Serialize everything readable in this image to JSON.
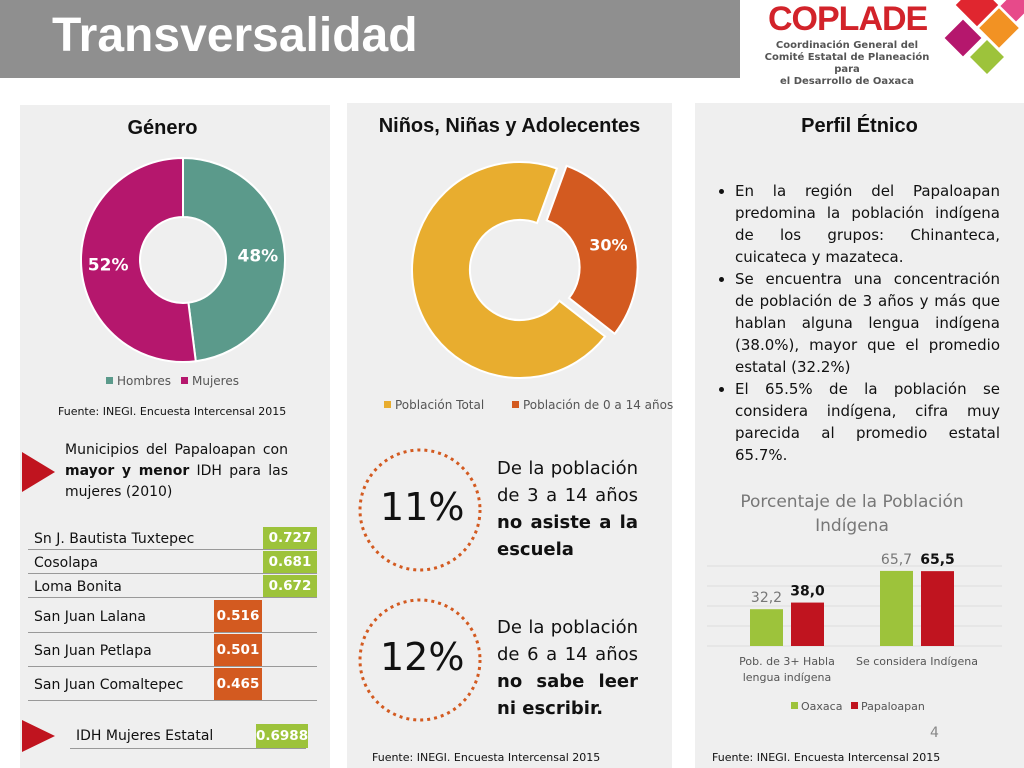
{
  "header": {
    "title": "Transversalidad",
    "logo": "COPLADE",
    "logo_subtitle": [
      "Coordinación General del",
      "Comité Estatal de Planeación para",
      "el Desarrollo de Oaxaca"
    ]
  },
  "chart_data": [
    {
      "type": "donut",
      "title": "Género",
      "categories": [
        "Hombres",
        "Mujeres"
      ],
      "values": [
        48,
        52
      ],
      "value_labels": [
        "48%",
        "52%"
      ],
      "colors": [
        "#5b9a8b",
        "#b5176d"
      ],
      "legend": "bottom",
      "source": "Fuente: INEGI. Encuesta Intercensal 2015"
    },
    {
      "type": "donut",
      "title": "Niños, Niñas y Adolecentes",
      "categories": [
        "Población Total",
        "Población de 0 a 14 años"
      ],
      "values": [
        70,
        30
      ],
      "value_labels": [
        null,
        "30%"
      ],
      "colors": [
        "#e8ad2f",
        "#d35a20"
      ],
      "legend": "bottom",
      "exploded": [
        false,
        true
      ],
      "source": "Fuente: INEGI. Encuesta Intercensal 2015"
    },
    {
      "type": "bar",
      "title": "Porcentaje de la Población Indígena",
      "categories": [
        "Pob. de 3+ Habla lengua indígena",
        "Se considera Indígena"
      ],
      "series": [
        {
          "name": "Oaxaca",
          "color": "#9dc33b",
          "values": [
            32.2,
            65.7
          ],
          "value_labels": [
            "32,2",
            "65,7"
          ]
        },
        {
          "name": "Papaloapan",
          "color": "#c0141f",
          "values": [
            38.0,
            65.5
          ],
          "value_labels": [
            "38,0",
            "65,5"
          ]
        }
      ],
      "ylim": [
        0,
        70
      ],
      "grid": true,
      "legend": "bottom",
      "source": "Fuente: INEGI. Encuesta Intercensal 2015"
    }
  ],
  "idh": {
    "intro": [
      "Municipios del Papaloapan con ",
      "mayor y menor",
      " IDH para las mujeres (2010)"
    ],
    "rows": [
      [
        "Sn J. Bautista Tuxtepec",
        0.727
      ],
      [
        "Cosolapa",
        0.681
      ],
      [
        "Loma Bonita",
        0.672
      ],
      [
        "San Juan Lalana",
        0.516
      ],
      [
        "San Juan Petlapa",
        0.501
      ],
      [
        "San Juan Comaltepec",
        0.465
      ]
    ],
    "state": [
      "IDH Mujeres Estatal",
      0.6988
    ]
  },
  "facts": [
    {
      "value": "11%",
      "text": [
        "De la población de 3 a 14 años ",
        "no asiste a la escuela"
      ]
    },
    {
      "value": "12%",
      "text": [
        "De la población de 6 a 14 años ",
        "no sabe leer ni escribir."
      ]
    }
  ],
  "etnico": {
    "title": "Perfil Étnico",
    "bullets": [
      "En la región del Papaloapan predomina la población indígena de los grupos: Chinanteca, cuicateca y mazateca.",
      "Se encuentra una concentración de población de 3 años y más que hablan alguna lengua indígena (38.0%), mayor que el promedio estatal (32.2%)",
      "El 65.5% de la población se considera indígena, cifra muy parecida al promedio estatal 65.7%."
    ]
  },
  "page_number": 4
}
